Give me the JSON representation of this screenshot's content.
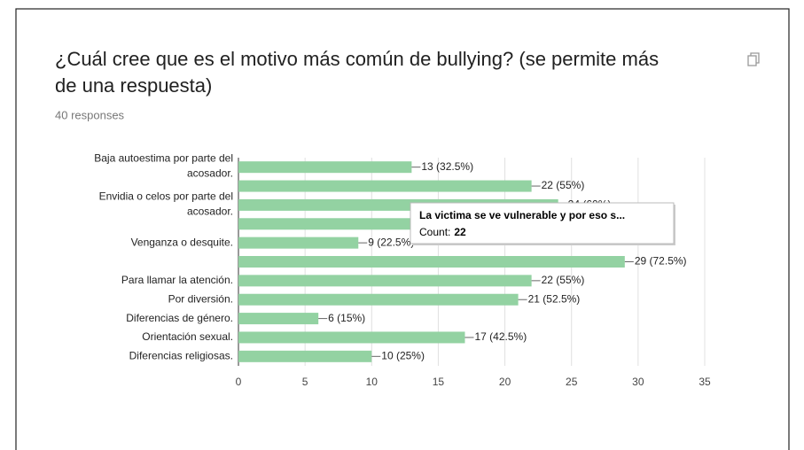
{
  "chart_data": {
    "type": "hbar",
    "title": "¿Cuál cree que es el motivo más común de bullying? (se permite más de una respuesta)",
    "subtitle": "40 responses",
    "categories": [
      "Baja autoestima por parte del acosador.",
      null,
      "Envidia o celos por parte del acosador.",
      null,
      "Venganza o desquite.",
      null,
      "Para llamar la atención.",
      "Por diversión.",
      "Diferencias de género.",
      "Orientación sexual.",
      "Diferencias religiosas."
    ],
    "values": [
      13,
      22,
      24,
      20,
      9,
      29,
      22,
      21,
      6,
      17,
      10
    ],
    "value_labels": [
      "13 (32.5%)",
      "22 (55%)",
      "24 (60%)",
      null,
      "9 (22.5%)",
      "29 (72.5%)",
      "22 (55%)",
      "21 (52.5%)",
      "6 (15%)",
      "17 (42.5%)",
      "10 (25%)"
    ],
    "color": "#93d2a2",
    "xlim": [
      0,
      35
    ],
    "xticks": [
      0,
      5,
      10,
      15,
      20,
      25,
      30,
      35
    ],
    "grid": true,
    "tooltip": {
      "title": "La victima se ve vulnerable y por eso s...",
      "count_label": "Count:",
      "count": 22
    }
  }
}
